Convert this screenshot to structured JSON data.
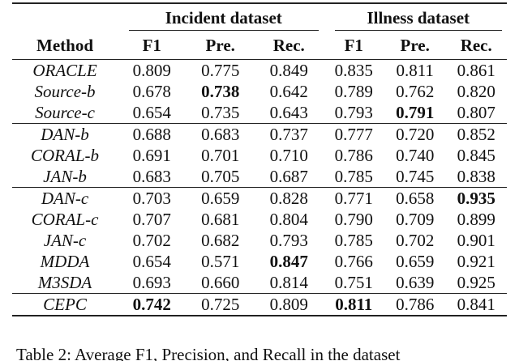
{
  "table": {
    "group_headers": [
      "Incident dataset",
      "Illness dataset"
    ],
    "columns": [
      "Method",
      "F1",
      "Pre.",
      "Rec.",
      "F1",
      "Pre.",
      "Rec."
    ],
    "sections": [
      {
        "rows": [
          [
            "ORACLE",
            "0.809",
            "0.775",
            "0.849",
            "0.835",
            "0.811",
            "0.861"
          ],
          [
            "Source-b",
            "0.678",
            {
              "text": "0.738",
              "bold": true
            },
            "0.642",
            "0.789",
            "0.762",
            "0.820"
          ],
          [
            "Source-c",
            "0.654",
            "0.735",
            "0.643",
            "0.793",
            {
              "text": "0.791",
              "bold": true
            },
            "0.807"
          ]
        ]
      },
      {
        "rows": [
          [
            "DAN-b",
            "0.688",
            "0.683",
            "0.737",
            "0.777",
            "0.720",
            "0.852"
          ],
          [
            "CORAL-b",
            "0.691",
            "0.701",
            "0.710",
            "0.786",
            "0.740",
            "0.845"
          ],
          [
            "JAN-b",
            "0.683",
            "0.705",
            "0.687",
            "0.785",
            "0.745",
            "0.838"
          ]
        ]
      },
      {
        "rows": [
          [
            "DAN-c",
            "0.703",
            "0.659",
            "0.828",
            "0.771",
            "0.658",
            {
              "text": "0.935",
              "bold": true
            }
          ],
          [
            "CORAL-c",
            "0.707",
            "0.681",
            "0.804",
            "0.790",
            "0.709",
            "0.899"
          ],
          [
            "JAN-c",
            "0.702",
            "0.682",
            "0.793",
            "0.785",
            "0.702",
            "0.901"
          ],
          [
            "MDDA",
            "0.654",
            "0.571",
            {
              "text": "0.847",
              "bold": true
            },
            "0.766",
            "0.659",
            "0.921"
          ],
          [
            "M3SDA",
            "0.693",
            "0.660",
            "0.814",
            "0.751",
            "0.639",
            "0.925"
          ]
        ]
      },
      {
        "rows": [
          [
            "CEPC",
            {
              "text": "0.742",
              "bold": true
            },
            "0.725",
            "0.809",
            {
              "text": "0.811",
              "bold": true
            },
            "0.786",
            "0.841"
          ]
        ]
      }
    ],
    "caption": "Table 2: Average F1, Precision, and Recall in the dataset"
  }
}
